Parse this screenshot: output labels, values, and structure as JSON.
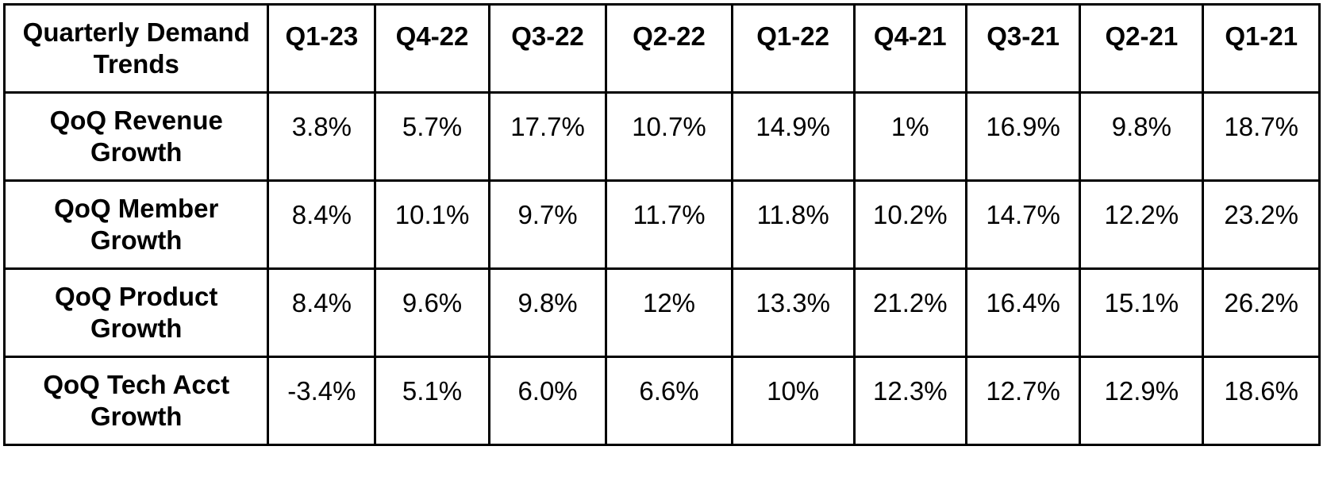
{
  "table": {
    "corner_header": "Quarterly Demand Trends",
    "columns": [
      "Q1-23",
      "Q4-22",
      "Q3-22",
      "Q2-22",
      "Q1-22",
      "Q4-21",
      "Q3-21",
      "Q2-21",
      "Q1-21"
    ],
    "rows": [
      {
        "label": "QoQ Revenue Growth",
        "values": [
          "3.8%",
          "5.7%",
          "17.7%",
          "10.7%",
          "14.9%",
          "1%",
          "16.9%",
          "9.8%",
          "18.7%"
        ]
      },
      {
        "label": "QoQ Member Growth",
        "values": [
          "8.4%",
          "10.1%",
          "9.7%",
          "11.7%",
          "11.8%",
          "10.2%",
          "14.7%",
          "12.2%",
          "23.2%"
        ]
      },
      {
        "label": "QoQ Product Growth",
        "values": [
          "8.4%",
          "9.6%",
          "9.8%",
          "12%",
          "13.3%",
          "21.2%",
          "16.4%",
          "15.1%",
          "26.2%"
        ]
      },
      {
        "label": "QoQ Tech Acct Growth",
        "values": [
          "-3.4%",
          "5.1%",
          "6.0%",
          "6.6%",
          "10%",
          "12.3%",
          "12.7%",
          "12.9%",
          "18.6%"
        ]
      }
    ]
  },
  "chart_data": {
    "type": "table",
    "title": "",
    "categories": [
      "Q1-23",
      "Q4-22",
      "Q3-22",
      "Q2-22",
      "Q1-22",
      "Q4-21",
      "Q3-21",
      "Q2-21",
      "Q1-21"
    ],
    "series": [
      {
        "name": "QoQ Revenue Growth",
        "values": [
          3.8,
          5.7,
          17.7,
          10.7,
          14.9,
          1,
          16.9,
          9.8,
          18.7
        ]
      },
      {
        "name": "QoQ Member Growth",
        "values": [
          8.4,
          10.1,
          9.7,
          11.7,
          11.8,
          10.2,
          14.7,
          12.2,
          23.2
        ]
      },
      {
        "name": "QoQ Product Growth",
        "values": [
          8.4,
          9.6,
          9.8,
          12,
          13.3,
          21.2,
          16.4,
          15.1,
          26.2
        ]
      },
      {
        "name": "QoQ Tech Acct Growth",
        "values": [
          -3.4,
          5.1,
          6.0,
          6.6,
          10,
          12.3,
          12.7,
          12.9,
          18.6
        ]
      }
    ]
  }
}
